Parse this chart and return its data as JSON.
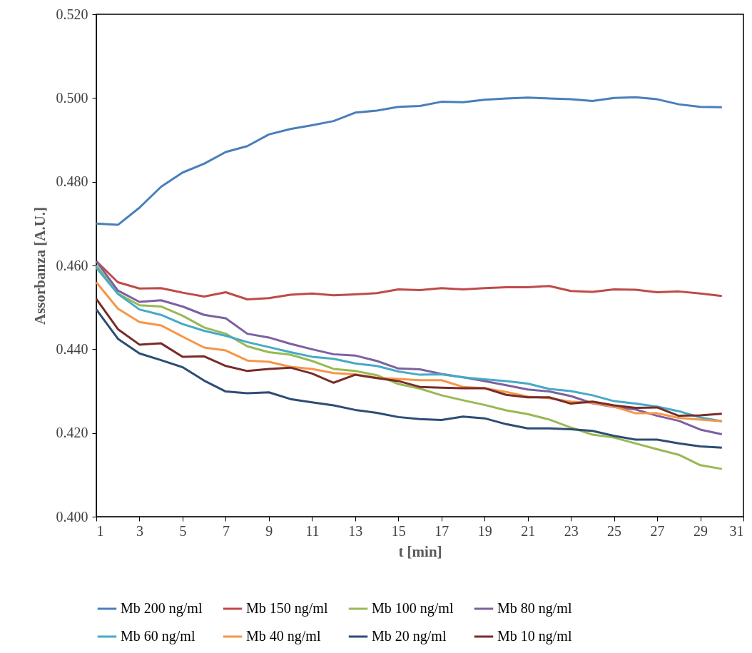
{
  "chart_data": {
    "type": "line",
    "xlabel": "t [min]",
    "ylabel": "Assorbanza [A.U.]",
    "x": [
      1,
      2,
      3,
      4,
      5,
      6,
      7,
      8,
      9,
      10,
      11,
      12,
      13,
      14,
      15,
      16,
      17,
      18,
      19,
      20,
      21,
      22,
      23,
      24,
      25,
      26,
      27,
      28,
      29,
      30
    ],
    "xlim": [
      1,
      31
    ],
    "xticks": [
      1,
      3,
      5,
      7,
      9,
      11,
      13,
      15,
      17,
      19,
      21,
      23,
      25,
      27,
      29,
      31
    ],
    "ylim": [
      0.4,
      0.52
    ],
    "yticks": [
      {
        "value": 0.4,
        "label": "0.400"
      },
      {
        "value": 0.42,
        "label": "0.420"
      },
      {
        "value": 0.44,
        "label": "0.440"
      },
      {
        "value": 0.46,
        "label": "0.460"
      },
      {
        "value": 0.48,
        "label": "0.480"
      },
      {
        "value": 0.5,
        "label": "0.500"
      },
      {
        "value": 0.52,
        "label": "0.520"
      }
    ],
    "grid": false,
    "legend": "bottom",
    "marker": "none",
    "line_style": "solid",
    "series": [
      {
        "name": "Mb 200 ng/ml",
        "color": "#4a7ebb",
        "values": [
          0.47,
          0.4697,
          0.4738,
          0.4788,
          0.4822,
          0.4843,
          0.4871,
          0.4885,
          0.4913,
          0.4926,
          0.4935,
          0.4945,
          0.4965,
          0.497,
          0.4979,
          0.4981,
          0.4991,
          0.499,
          0.4996,
          0.4999,
          0.5001,
          0.4999,
          0.4997,
          0.4993,
          0.5,
          0.5002,
          0.4997,
          0.4985,
          0.4979,
          0.4978
        ]
      },
      {
        "name": "Mb 150 ng/ml",
        "color": "#be4b48",
        "values": [
          0.461,
          0.456,
          0.4545,
          0.4546,
          0.4535,
          0.4526,
          0.4536,
          0.4519,
          0.4522,
          0.453,
          0.4533,
          0.4529,
          0.4531,
          0.4534,
          0.4543,
          0.4541,
          0.4546,
          0.4543,
          0.4546,
          0.4548,
          0.4548,
          0.4551,
          0.4539,
          0.4537,
          0.4543,
          0.4542,
          0.4536,
          0.4538,
          0.4533,
          0.4527
        ]
      },
      {
        "name": "Mb 100 ng/ml",
        "color": "#98b954",
        "values": [
          0.46,
          0.4533,
          0.4505,
          0.4502,
          0.448,
          0.4452,
          0.4437,
          0.4407,
          0.4393,
          0.4387,
          0.4372,
          0.4353,
          0.4348,
          0.4338,
          0.4317,
          0.4306,
          0.429,
          0.4278,
          0.4267,
          0.4254,
          0.4245,
          0.4232,
          0.4213,
          0.4196,
          0.4189,
          0.4175,
          0.4161,
          0.4148,
          0.4123,
          0.4114
        ]
      },
      {
        "name": "Mb 80 ng/ml",
        "color": "#7d60a0",
        "values": [
          0.461,
          0.454,
          0.4513,
          0.4517,
          0.4502,
          0.4482,
          0.4474,
          0.4437,
          0.4428,
          0.4413,
          0.44,
          0.4388,
          0.4385,
          0.4372,
          0.4354,
          0.4352,
          0.4341,
          0.4333,
          0.4324,
          0.4314,
          0.4304,
          0.4299,
          0.4288,
          0.4271,
          0.4262,
          0.4256,
          0.4241,
          0.4229,
          0.4208,
          0.4197
        ]
      },
      {
        "name": "Mb 60 ng/ml",
        "color": "#46aac5",
        "values": [
          0.4595,
          0.4532,
          0.4495,
          0.4482,
          0.446,
          0.4444,
          0.4432,
          0.4417,
          0.4405,
          0.4393,
          0.4382,
          0.4377,
          0.4366,
          0.436,
          0.4347,
          0.4339,
          0.434,
          0.4333,
          0.4328,
          0.4324,
          0.4318,
          0.4305,
          0.43,
          0.429,
          0.4276,
          0.427,
          0.4263,
          0.4252,
          0.4237,
          0.4228
        ]
      },
      {
        "name": "Mb 40 ng/ml",
        "color": "#f79646",
        "values": [
          0.456,
          0.4497,
          0.4465,
          0.4457,
          0.443,
          0.4404,
          0.4397,
          0.4373,
          0.437,
          0.4358,
          0.4353,
          0.4343,
          0.434,
          0.4332,
          0.4329,
          0.4326,
          0.4326,
          0.431,
          0.4307,
          0.4298,
          0.4287,
          0.4283,
          0.4275,
          0.4272,
          0.4263,
          0.4247,
          0.4247,
          0.4236,
          0.4232,
          0.4228
        ]
      },
      {
        "name": "Mb 20 ng/ml",
        "color": "#2c4d75",
        "values": [
          0.4495,
          0.4425,
          0.439,
          0.4374,
          0.4357,
          0.4325,
          0.4299,
          0.4295,
          0.4297,
          0.4281,
          0.4273,
          0.4266,
          0.4255,
          0.4248,
          0.4238,
          0.4233,
          0.4231,
          0.4239,
          0.4235,
          0.4221,
          0.4211,
          0.4211,
          0.4209,
          0.4205,
          0.4193,
          0.4184,
          0.4184,
          0.4175,
          0.4168,
          0.4165
        ]
      },
      {
        "name": "Mb 10 ng/ml",
        "color": "#772c2a",
        "values": [
          0.452,
          0.4448,
          0.4411,
          0.4414,
          0.4382,
          0.4383,
          0.436,
          0.4348,
          0.4353,
          0.4356,
          0.4342,
          0.432,
          0.4339,
          0.4331,
          0.4324,
          0.431,
          0.4308,
          0.4307,
          0.4307,
          0.4291,
          0.4285,
          0.4285,
          0.427,
          0.4275,
          0.4266,
          0.426,
          0.4261,
          0.4241,
          0.4242,
          0.4246
        ]
      }
    ]
  }
}
